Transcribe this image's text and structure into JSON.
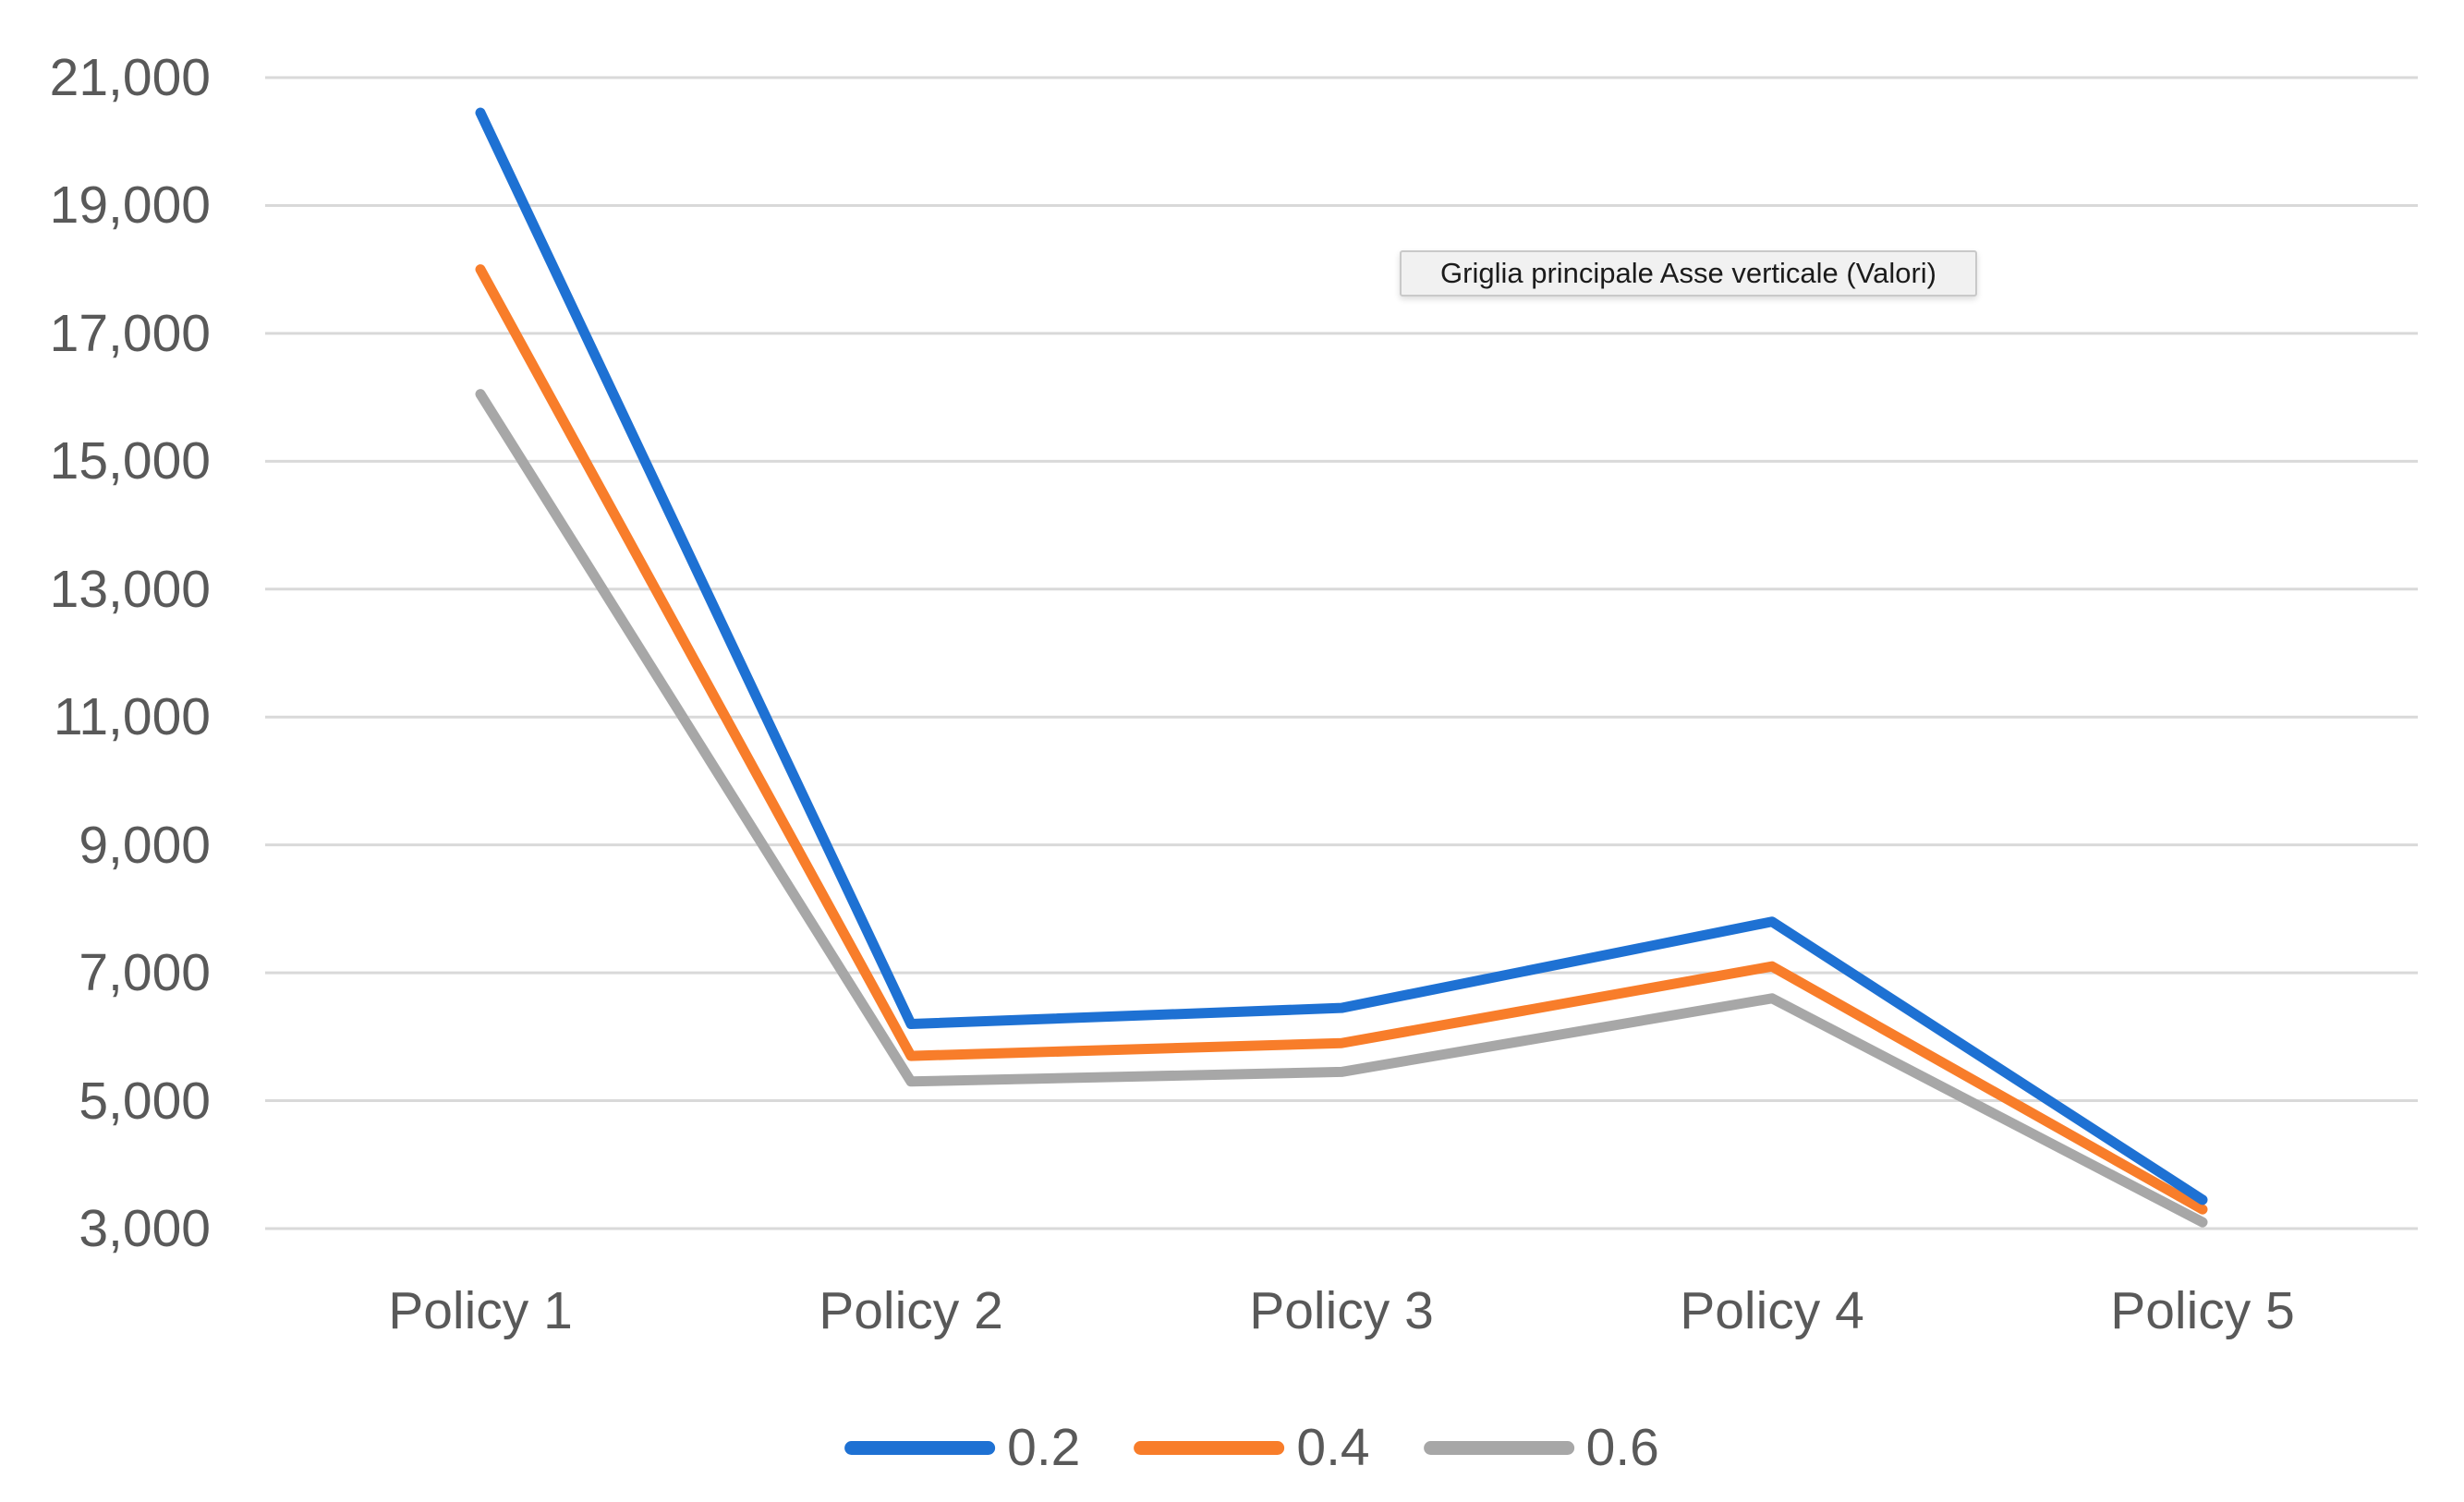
{
  "tooltip": {
    "text": "Griglia principale Asse verticale (Valori)"
  },
  "colors": {
    "background": "#ffffff",
    "axis_text": "#595959",
    "gridline": "#d9d9d9",
    "tooltip_bg": "#f1f1f1",
    "tooltip_border": "#c9c9c9",
    "series_blue": "#1e71d3",
    "series_orange": "#f87d2a",
    "series_gray": "#a7a7a7"
  },
  "chart_data": {
    "type": "line",
    "title": "",
    "xlabel": "",
    "ylabel": "",
    "categories": [
      "Policy 1",
      "Policy 2",
      "Policy 3",
      "Policy 4",
      "Policy 5"
    ],
    "series": [
      {
        "name": "0.2",
        "color": "#1e71d3",
        "values": [
          20450,
          6200,
          6450,
          7800,
          3450
        ]
      },
      {
        "name": "0.4",
        "color": "#f87d2a",
        "values": [
          18000,
          5700,
          5900,
          7100,
          3300
        ]
      },
      {
        "name": "0.6",
        "color": "#a7a7a7",
        "values": [
          16050,
          5300,
          5450,
          6600,
          3100
        ]
      }
    ],
    "ylim": [
      3000,
      21000
    ],
    "ytick_step": 2000,
    "yticks": [
      "21,000",
      "19,000",
      "17,000",
      "15,000",
      "13,000",
      "11,000",
      "9,000",
      "7,000",
      "5,000",
      "3,000"
    ],
    "grid": "horizontal-major",
    "legend_position": "bottom"
  }
}
